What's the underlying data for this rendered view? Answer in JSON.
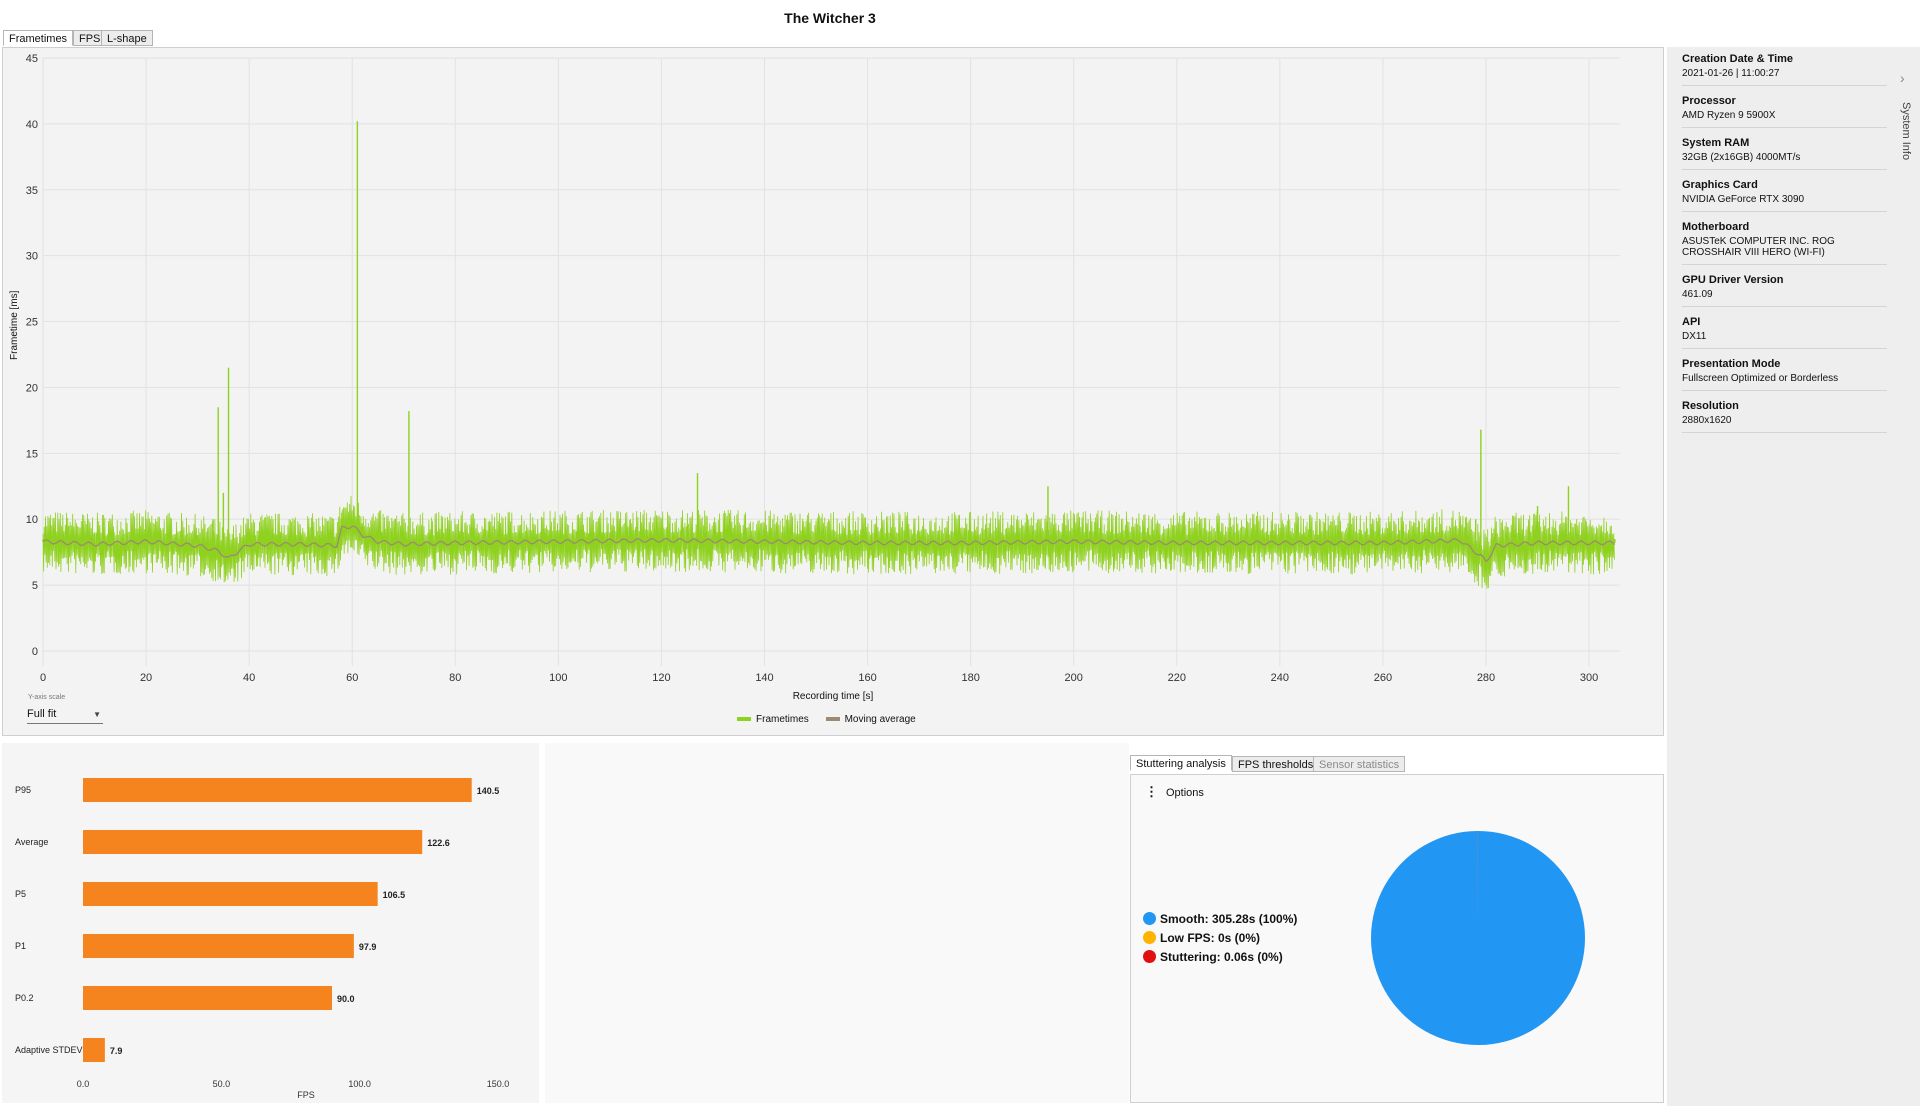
{
  "title": "The Witcher 3",
  "tabs": [
    {
      "label": "Frametimes"
    },
    {
      "label": "FPS"
    },
    {
      "label": "L-shape"
    }
  ],
  "frametime_chart": {
    "y_ticks": [
      "45",
      "40",
      "35",
      "30",
      "25",
      "20",
      "15",
      "10",
      "5",
      "0"
    ],
    "x_ticks": [
      "0",
      "20",
      "40",
      "60",
      "80",
      "100",
      "120",
      "140",
      "160",
      "180",
      "200",
      "220",
      "240",
      "260",
      "280",
      "300"
    ],
    "ylabel": "Frametime [ms]",
    "xlabel": "Recording time [s]",
    "legend": [
      "Frametimes",
      "Moving average"
    ],
    "colors": {
      "frametimes": "#8fd11f",
      "moving_average": "#9d8a73"
    },
    "yaxis_scale_caption": "Y-axis scale",
    "yaxis_scale_value": "Full fit"
  },
  "system_info": {
    "tab_label": "System Info",
    "items": [
      {
        "label": "Creation Date & Time",
        "value": "2021-01-26  |  11:00:27"
      },
      {
        "label": "Processor",
        "value": "AMD Ryzen 9 5900X"
      },
      {
        "label": "System RAM",
        "value": "32GB (2x16GB) 4000MT/s"
      },
      {
        "label": "Graphics Card",
        "value": "NVIDIA GeForce RTX 3090"
      },
      {
        "label": "Motherboard",
        "value": "ASUSTeK COMPUTER INC. ROG CROSSHAIR VIII HERO (WI-FI)"
      },
      {
        "label": "GPU Driver Version",
        "value": "461.09"
      },
      {
        "label": "API",
        "value": "DX11"
      },
      {
        "label": "Presentation Mode",
        "value": "Fullscreen Optimized or Borderless"
      },
      {
        "label": "Resolution",
        "value": "2880x1620"
      }
    ]
  },
  "chart_data": [
    {
      "type": "line",
      "xlabel": "Recording time [s]",
      "ylabel": "Frametime [ms]",
      "xlim": [
        0,
        306
      ],
      "ylim": [
        0,
        45
      ],
      "series": [
        {
          "name": "Frametimes",
          "x": [
            0,
            5,
            10,
            20,
            30,
            33,
            34,
            35,
            36,
            37,
            40,
            50,
            57,
            58,
            60,
            61,
            62,
            65,
            70,
            71,
            72,
            80,
            100,
            120,
            127,
            140,
            160,
            180,
            195,
            200,
            220,
            240,
            260,
            275,
            278,
            279,
            280,
            281,
            285,
            290,
            296,
            300,
            305
          ],
          "y": [
            8.5,
            9.5,
            9,
            8.5,
            8.8,
            10,
            18.5,
            12,
            21.5,
            8,
            9,
            9,
            8.5,
            10.5,
            10,
            40.2,
            9.5,
            8.5,
            9,
            18.2,
            8.5,
            8.6,
            8.7,
            8.8,
            13.5,
            8.7,
            8.6,
            8.6,
            12.5,
            8.6,
            8.7,
            8.6,
            8.6,
            8.7,
            10,
            16.8,
            6,
            8.5,
            9,
            11,
            12.5,
            9,
            8.5
          ]
        },
        {
          "name": "Moving average",
          "x": [
            0,
            10,
            20,
            30,
            34,
            36,
            38,
            40,
            50,
            57,
            58,
            60,
            62,
            65,
            70,
            80,
            100,
            120,
            140,
            160,
            180,
            200,
            220,
            240,
            260,
            275,
            279,
            280,
            282,
            290,
            300,
            305
          ],
          "y": [
            8.3,
            8.1,
            8.3,
            8.0,
            7.6,
            7.0,
            7.6,
            8.1,
            8.1,
            8.0,
            9.3,
            9.5,
            8.8,
            8.3,
            8.1,
            8.2,
            8.3,
            8.4,
            8.3,
            8.2,
            8.2,
            8.3,
            8.2,
            8.2,
            8.2,
            8.4,
            7.2,
            6.8,
            8.0,
            8.2,
            8.2,
            8.2
          ]
        }
      ]
    },
    {
      "type": "bar",
      "orientation": "horizontal",
      "xlabel": "FPS",
      "xlim": [
        0,
        150
      ],
      "x_ticks": [
        "0.0",
        "50.0",
        "100.0",
        "150.0"
      ],
      "categories": [
        "P95",
        "Average",
        "P5",
        "P1",
        "P0.2",
        "Adaptive STDEV"
      ],
      "values": [
        140.5,
        122.6,
        106.5,
        97.9,
        90.0,
        7.9
      ],
      "value_labels": [
        "140.5",
        "122.6",
        "106.5",
        "97.9",
        "90.0",
        "7.9"
      ],
      "color": "#f5841f"
    },
    {
      "type": "pie",
      "categories": [
        "Smooth",
        "Low FPS",
        "Stuttering"
      ],
      "values": [
        305.28,
        0,
        0.06
      ],
      "colors": [
        "#2196f3",
        "#ffb300",
        "#e01010"
      ]
    }
  ],
  "stutter": {
    "tabs": [
      {
        "label": "Stuttering analysis"
      },
      {
        "label": "FPS thresholds"
      },
      {
        "label": "Sensor statistics"
      }
    ],
    "options_label": "Options",
    "legend": [
      {
        "text": "Smooth:  305.28s (100%)",
        "color": "#2196f3"
      },
      {
        "text": "Low FPS:  0s (0%)",
        "color": "#ffb300"
      },
      {
        "text": "Stuttering:  0.06s (0%)",
        "color": "#e01010"
      }
    ]
  }
}
